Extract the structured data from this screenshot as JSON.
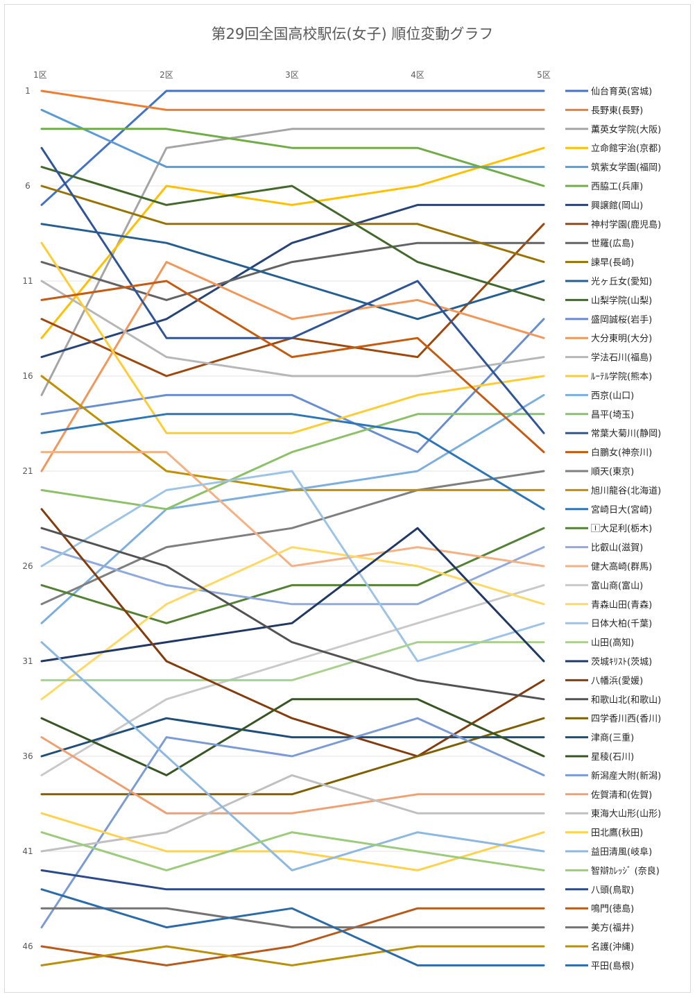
{
  "chart_data": {
    "type": "line",
    "title": "第29回全国高校駅伝(女子) 順位変動グラフ",
    "x": [
      "1区",
      "2区",
      "3区",
      "4区",
      "5区"
    ],
    "ytick_labels": [
      "1",
      "6",
      "11",
      "16",
      "21",
      "26",
      "31",
      "36",
      "41",
      "46"
    ],
    "ylim": [
      47,
      1
    ],
    "y_inverted": true,
    "grid": true,
    "legend_position": "right",
    "series": [
      {
        "name": "仙台育英(宮城)",
        "color": "#4472C4",
        "values": [
          7,
          1,
          1,
          1,
          1
        ]
      },
      {
        "name": "長野東(長野)",
        "color": "#ED7D31",
        "values": [
          1,
          2,
          2,
          2,
          2
        ]
      },
      {
        "name": "薫英女学院(大阪)",
        "color": "#A5A5A5",
        "values": [
          17,
          4,
          3,
          3,
          3
        ]
      },
      {
        "name": "立命館宇治(京都)",
        "color": "#FFC000",
        "values": [
          14,
          6,
          7,
          6,
          4
        ]
      },
      {
        "name": "筑紫女学園(福岡)",
        "color": "#5B9BD5",
        "values": [
          2,
          5,
          5,
          5,
          5
        ]
      },
      {
        "name": "西脇工(兵庫)",
        "color": "#70AD47",
        "values": [
          3,
          3,
          4,
          4,
          6
        ]
      },
      {
        "name": "興譲館(岡山)",
        "color": "#264478",
        "values": [
          15,
          13,
          9,
          7,
          7
        ]
      },
      {
        "name": "神村学園(鹿児島)",
        "color": "#9E480E",
        "values": [
          13,
          16,
          14,
          15,
          8
        ]
      },
      {
        "name": "世羅(広島)",
        "color": "#636363",
        "values": [
          10,
          12,
          10,
          9,
          9
        ]
      },
      {
        "name": "諫早(長崎)",
        "color": "#997300",
        "values": [
          6,
          8,
          8,
          8,
          10
        ]
      },
      {
        "name": "光ヶ丘女(愛知)",
        "color": "#255E91",
        "values": [
          8,
          9,
          11,
          13,
          11
        ]
      },
      {
        "name": "山梨学院(山梨)",
        "color": "#43682B",
        "values": [
          5,
          7,
          6,
          10,
          12
        ]
      },
      {
        "name": "盛岡誠桜(岩手)",
        "color": "#698ED0",
        "values": [
          18,
          17,
          17,
          20,
          13
        ]
      },
      {
        "name": "大分東明(大分)",
        "color": "#F1975A",
        "values": [
          21,
          10,
          13,
          12,
          14
        ]
      },
      {
        "name": "学法石川(福島)",
        "color": "#B7B7B7",
        "values": [
          11,
          15,
          16,
          16,
          15
        ]
      },
      {
        "name": "ﾙｰﾃﾙ学院(熊本)",
        "color": "#FFCD33",
        "values": [
          9,
          19,
          19,
          17,
          16
        ]
      },
      {
        "name": "西京(山口)",
        "color": "#7CAFDD",
        "values": [
          29,
          23,
          22,
          21,
          17
        ]
      },
      {
        "name": "昌平(埼玉)",
        "color": "#8CC168",
        "values": [
          22,
          23,
          20,
          18,
          18
        ]
      },
      {
        "name": "常葉大菊川(静岡)",
        "color": "#2F5597",
        "values": [
          4,
          14,
          14,
          11,
          19
        ]
      },
      {
        "name": "白鵬女(神奈川)",
        "color": "#C55A11",
        "values": [
          12,
          11,
          15,
          14,
          20
        ]
      },
      {
        "name": "順天(東京)",
        "color": "#7F7F7F",
        "values": [
          28,
          25,
          24,
          22,
          21
        ]
      },
      {
        "name": "旭川龍谷(北海道)",
        "color": "#BF9000",
        "values": [
          16,
          21,
          22,
          22,
          22
        ]
      },
      {
        "name": "宮崎日大(宮崎)",
        "color": "#2E75B6",
        "values": [
          19,
          18,
          18,
          19,
          23
        ]
      },
      {
        "name": "🄸大足利(栃木)",
        "color": "#548235",
        "values": [
          27,
          29,
          27,
          27,
          24
        ]
      },
      {
        "name": "比叡山(滋賀)",
        "color": "#8FAADC",
        "values": [
          25,
          27,
          28,
          28,
          25
        ]
      },
      {
        "name": "健大高崎(群馬)",
        "color": "#F4B183",
        "values": [
          20,
          20,
          26,
          25,
          26
        ]
      },
      {
        "name": "富山商(富山)",
        "color": "#C9C9C9",
        "values": [
          37,
          33,
          31,
          29,
          27
        ]
      },
      {
        "name": "青森山田(青森)",
        "color": "#FFD966",
        "values": [
          33,
          28,
          25,
          26,
          28
        ]
      },
      {
        "name": "日体大柏(千葉)",
        "color": "#9DC3E6",
        "values": [
          26,
          22,
          21,
          31,
          29
        ]
      },
      {
        "name": "山田(高知)",
        "color": "#A9D18E",
        "values": [
          32,
          32,
          32,
          30,
          30
        ]
      },
      {
        "name": "茨城ｷﾘｽﾄ(茨城)",
        "color": "#203864",
        "values": [
          31,
          30,
          29,
          24,
          31
        ]
      },
      {
        "name": "八幡浜(愛媛)",
        "color": "#843C0C",
        "values": [
          23,
          31,
          34,
          36,
          32
        ]
      },
      {
        "name": "和歌山北(和歌山)",
        "color": "#525252",
        "values": [
          24,
          26,
          30,
          32,
          33
        ]
      },
      {
        "name": "四学香川西(香川)",
        "color": "#7F6000",
        "values": [
          38,
          38,
          38,
          36,
          34
        ]
      },
      {
        "name": "津商(三重)",
        "color": "#1F4E79",
        "values": [
          36,
          34,
          35,
          35,
          35
        ]
      },
      {
        "name": "星稜(石川)",
        "color": "#375623",
        "values": [
          34,
          37,
          33,
          33,
          36
        ]
      },
      {
        "name": "新潟産大附(新潟)",
        "color": "#7A9BD3",
        "values": [
          45,
          35,
          36,
          34,
          37
        ]
      },
      {
        "name": "佐賀清和(佐賀)",
        "color": "#F0A070",
        "values": [
          35,
          39,
          39,
          38,
          38
        ]
      },
      {
        "name": "東海大山形(山形)",
        "color": "#C0C0C0",
        "values": [
          41,
          40,
          37,
          39,
          39
        ]
      },
      {
        "name": "田北鷹(秋田)",
        "color": "#FFD24D",
        "values": [
          39,
          41,
          41,
          42,
          40
        ]
      },
      {
        "name": "益田清風(岐阜)",
        "color": "#8DB8E0",
        "values": [
          30,
          36,
          42,
          40,
          41
        ]
      },
      {
        "name": "智辯ｶﾚｯｼﾞ (奈良)",
        "color": "#9BCB7B",
        "values": [
          40,
          42,
          40,
          41,
          42
        ]
      },
      {
        "name": "八頭(鳥取)",
        "color": "#2A4A8A",
        "values": [
          42,
          43,
          43,
          43,
          43
        ]
      },
      {
        "name": "鳴門(徳島)",
        "color": "#B85A1A",
        "values": [
          46,
          47,
          46,
          44,
          44
        ]
      },
      {
        "name": "美方(福井)",
        "color": "#737373",
        "values": [
          44,
          44,
          45,
          45,
          45
        ]
      },
      {
        "name": "名護(沖縄)",
        "color": "#B8900A",
        "values": [
          47,
          46,
          47,
          46,
          46
        ]
      },
      {
        "name": "平田(島根)",
        "color": "#2A6BA8",
        "values": [
          43,
          45,
          44,
          47,
          47
        ]
      }
    ]
  }
}
